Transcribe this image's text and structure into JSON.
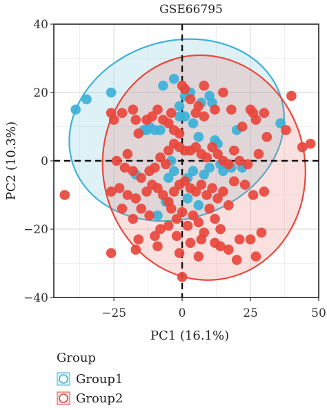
{
  "chart_data": {
    "type": "scatter",
    "title": "GSE66795",
    "xlabel": "PC1 (16.1%)",
    "ylabel": "PC2 (10.3%)",
    "xlim": [
      -47,
      50
    ],
    "ylim": [
      -40,
      40
    ],
    "xticks": [
      -25,
      0,
      25,
      50
    ],
    "yticks": [
      -40,
      -20,
      0,
      20,
      40
    ],
    "xtick_labels": [
      "−25",
      "0",
      "25",
      "50"
    ],
    "ytick_labels": [
      "−40",
      "−20",
      "0",
      "20",
      "40"
    ],
    "grid": true,
    "reference_lines": {
      "x": 0,
      "y": 0,
      "style": "dashed"
    },
    "legend": {
      "title": "Group",
      "placement": "bottom-left"
    },
    "series": [
      {
        "name": "Group1",
        "color": "#3cb1d8",
        "ellipse": {
          "cx": -2,
          "cy": 9,
          "rx": 40,
          "ry": 26,
          "angle": -18
        },
        "points": [
          [
            -39,
            15
          ],
          [
            -35,
            18
          ],
          [
            -26,
            20
          ],
          [
            -12,
            10
          ],
          [
            -8,
            9
          ],
          [
            -10,
            9
          ],
          [
            -14,
            9
          ],
          [
            -7,
            22
          ],
          [
            -3,
            24
          ],
          [
            -1,
            16
          ],
          [
            1,
            13
          ],
          [
            -1,
            13
          ],
          [
            1,
            19
          ],
          [
            3,
            20
          ],
          [
            7,
            17
          ],
          [
            11,
            17
          ],
          [
            10,
            19
          ],
          [
            4,
            11
          ],
          [
            6,
            7
          ],
          [
            13,
            5
          ],
          [
            12,
            6
          ],
          [
            20,
            9
          ],
          [
            36,
            11
          ],
          [
            4,
            -3
          ],
          [
            10,
            -2
          ],
          [
            15,
            -3
          ],
          [
            18,
            -2
          ],
          [
            22,
            -2
          ],
          [
            -4,
            0
          ],
          [
            2,
            -5
          ],
          [
            -3,
            -3
          ],
          [
            -9,
            -16
          ],
          [
            -6,
            -12
          ],
          [
            6,
            -13
          ],
          [
            2,
            -11
          ],
          [
            -17,
            -4
          ],
          [
            -13,
            9
          ],
          [
            -5,
            -5
          ],
          [
            14,
            -1
          ],
          [
            8,
            -4
          ]
        ]
      },
      {
        "name": "Group2",
        "color": "#e8473c",
        "ellipse": {
          "cx": 8,
          "cy": -2,
          "rx": 37,
          "ry": 33,
          "angle": -10
        },
        "points": [
          [
            -43,
            -10
          ],
          [
            -25,
            12
          ],
          [
            -26,
            14
          ],
          [
            -22,
            14
          ],
          [
            -18,
            15
          ],
          [
            -17,
            12
          ],
          [
            -16,
            8
          ],
          [
            -13,
            12
          ],
          [
            -11,
            13
          ],
          [
            -9,
            15
          ],
          [
            -7,
            12
          ],
          [
            -5,
            11
          ],
          [
            -4,
            14
          ],
          [
            -3,
            9
          ],
          [
            -1,
            8
          ],
          [
            0,
            22
          ],
          [
            1,
            21
          ],
          [
            3,
            18
          ],
          [
            5,
            14
          ],
          [
            6,
            16
          ],
          [
            8,
            13
          ],
          [
            8,
            22
          ],
          [
            12,
            15
          ],
          [
            15,
            20
          ],
          [
            18,
            15
          ],
          [
            22,
            10
          ],
          [
            25,
            15
          ],
          [
            26,
            14
          ],
          [
            27,
            12
          ],
          [
            30,
            14
          ],
          [
            40,
            19
          ],
          [
            44,
            4
          ],
          [
            47,
            5
          ],
          [
            -24,
            0
          ],
          [
            -20,
            2
          ],
          [
            -21,
            -2
          ],
          [
            -18,
            -3
          ],
          [
            -15,
            -5
          ],
          [
            -12,
            -3
          ],
          [
            -10,
            -2
          ],
          [
            -8,
            1
          ],
          [
            -6,
            -1
          ],
          [
            -5,
            3
          ],
          [
            -3,
            5
          ],
          [
            -1,
            4
          ],
          [
            1,
            3
          ],
          [
            3,
            3
          ],
          [
            5,
            4
          ],
          [
            7,
            2
          ],
          [
            9,
            1
          ],
          [
            11,
            4
          ],
          [
            13,
            2
          ],
          [
            15,
            0
          ],
          [
            17,
            -1
          ],
          [
            19,
            3
          ],
          [
            21,
            0
          ],
          [
            24,
            -1
          ],
          [
            28,
            2
          ],
          [
            31,
            7
          ],
          [
            38,
            9
          ],
          [
            -26,
            -9
          ],
          [
            -23,
            -8
          ],
          [
            -20,
            -10
          ],
          [
            -17,
            -11
          ],
          [
            -15,
            -14
          ],
          [
            -13,
            -9
          ],
          [
            -11,
            -7
          ],
          [
            -9,
            -8
          ],
          [
            -7,
            -10
          ],
          [
            -5,
            -12
          ],
          [
            -3,
            -9
          ],
          [
            -1,
            -7
          ],
          [
            1,
            -6
          ],
          [
            3,
            -8
          ],
          [
            5,
            -9
          ],
          [
            7,
            -7
          ],
          [
            9,
            -10
          ],
          [
            11,
            -8
          ],
          [
            13,
            -11
          ],
          [
            15,
            -9
          ],
          [
            17,
            -13
          ],
          [
            19,
            -6
          ],
          [
            23,
            -7
          ],
          [
            26,
            -10
          ],
          [
            30,
            -9
          ],
          [
            -22,
            -14
          ],
          [
            -18,
            -17
          ],
          [
            -12,
            -16
          ],
          [
            -8,
            -20
          ],
          [
            -4,
            -14
          ],
          [
            -2,
            -17
          ],
          [
            0,
            -15
          ],
          [
            2,
            -19
          ],
          [
            4,
            -16
          ],
          [
            6,
            -18
          ],
          [
            8,
            -21
          ],
          [
            10,
            -14
          ],
          [
            12,
            -17
          ],
          [
            14,
            -20
          ],
          [
            -16,
            -23
          ],
          [
            -10,
            -22
          ],
          [
            -5,
            -19
          ],
          [
            -2,
            -22
          ],
          [
            3,
            -24
          ],
          [
            7,
            -23
          ],
          [
            12,
            -24
          ],
          [
            17,
            -26
          ],
          [
            21,
            -23
          ],
          [
            25,
            -23
          ],
          [
            29,
            -21
          ],
          [
            -26,
            -27
          ],
          [
            -17,
            -26
          ],
          [
            -9,
            -25
          ],
          [
            -1,
            -27
          ],
          [
            6,
            -28
          ],
          [
            14,
            -25
          ],
          [
            20,
            -29
          ],
          [
            27,
            -28
          ],
          [
            0,
            -34
          ]
        ]
      }
    ]
  }
}
